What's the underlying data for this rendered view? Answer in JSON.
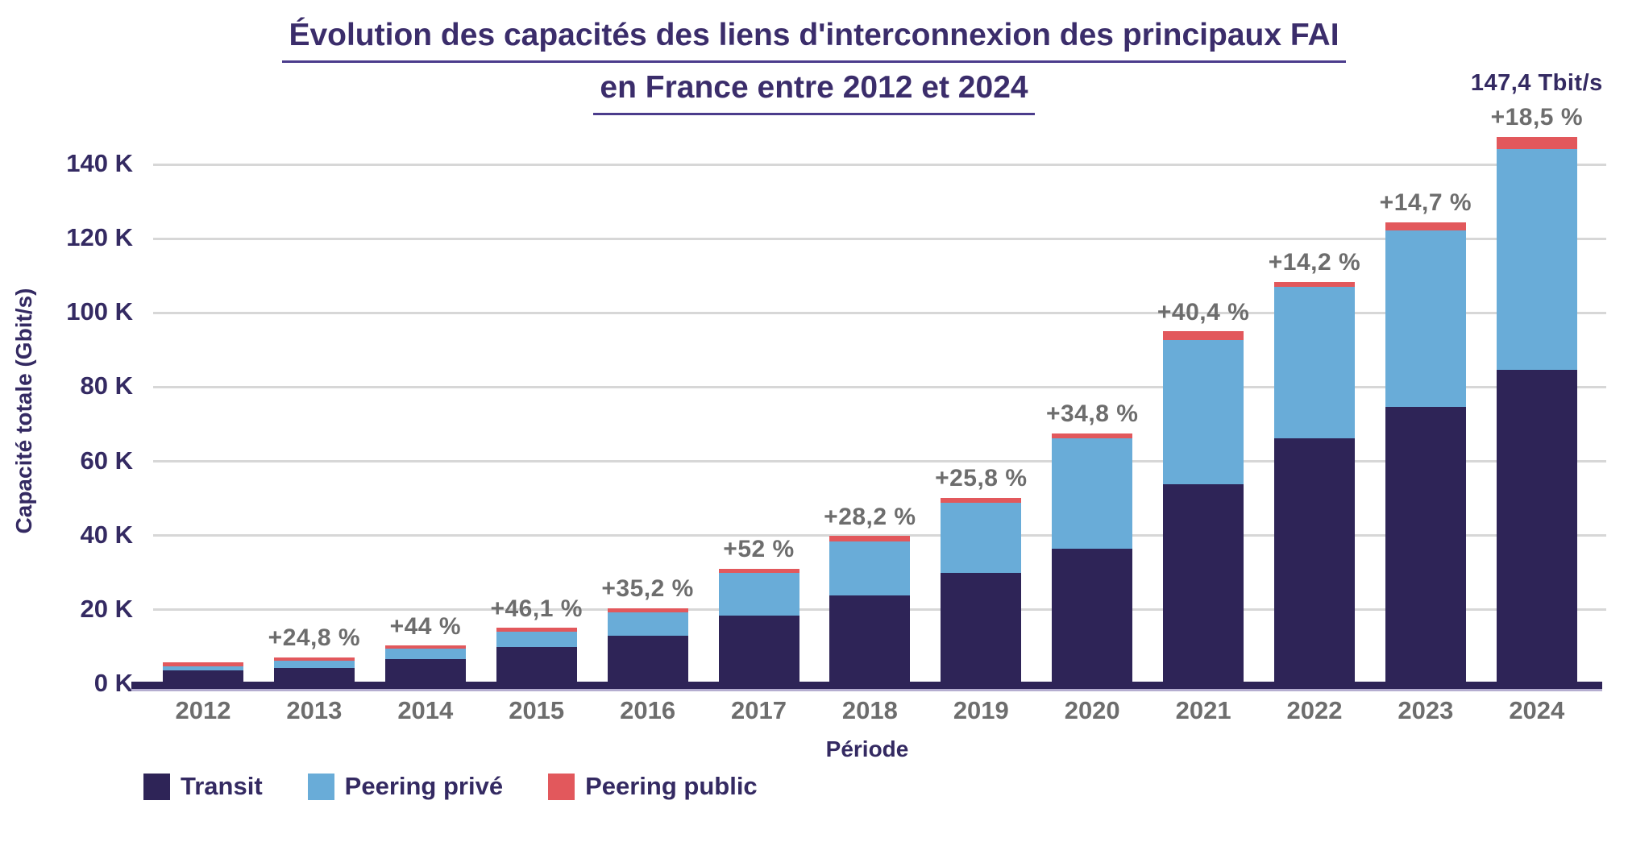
{
  "title": {
    "line1": "Évolution des capacités des liens d'interconnexion des principaux FAI",
    "line2": "en France entre 2012 et 2024"
  },
  "chart_data": {
    "type": "bar",
    "stacked": true,
    "categories": [
      "2012",
      "2013",
      "2014",
      "2015",
      "2016",
      "2017",
      "2018",
      "2019",
      "2020",
      "2021",
      "2022",
      "2023",
      "2024"
    ],
    "series": [
      {
        "name": "Transit",
        "color": "#2e2457",
        "values": [
          3.6,
          4.4,
          6.7,
          10.0,
          13.1,
          18.5,
          23.9,
          30.0,
          36.5,
          53.9,
          66.2,
          74.6,
          84.6
        ]
      },
      {
        "name": "Peering privé",
        "color": "#69acd8",
        "values": [
          1.2,
          1.9,
          2.8,
          4.1,
          6.3,
          11.5,
          14.5,
          18.9,
          29.8,
          38.8,
          40.7,
          47.7,
          59.5
        ]
      },
      {
        "name": "Peering public",
        "color": "#e2585c",
        "values": [
          1.0,
          0.9,
          0.9,
          1.0,
          1.1,
          1.1,
          1.5,
          1.3,
          1.3,
          2.3,
          1.5,
          2.1,
          3.3
        ]
      }
    ],
    "totals_tbits": [
      5.8,
      7.2,
      10.4,
      15.1,
      20.5,
      31.1,
      39.9,
      50.2,
      67.6,
      95.0,
      108.4,
      124.4,
      147.4
    ],
    "growth_labels": [
      null,
      "+24,8 %",
      "+44 %",
      "+46,1 %",
      "+35,2 %",
      "+52 %",
      "+28,2 %",
      "+25,8 %",
      "+34,8 %",
      "+40,4 %",
      "+14,2 %",
      "+14,7 %",
      "+18,5 %"
    ],
    "peak_label": "147,4 Tbit/s",
    "xlabel": "Période",
    "ylabel": "Capacité totale (Gbit/s)",
    "y_ticks": [
      "0 K",
      "20 K",
      "40 K",
      "60 K",
      "80 K",
      "100 K",
      "120 K",
      "140 K"
    ],
    "y_tick_step_k": 20,
    "ylim": [
      0,
      153
    ],
    "grid": "horizontal",
    "legend_position": "bottom-left"
  },
  "colors": {
    "title_text": "#3b2d6b",
    "underline": "#4b3c8c",
    "axis_text": "#342a62",
    "muted_text": "#6d6d6d",
    "gridline": "#d7d7d7",
    "axis_line": "#2e2457",
    "background": "#ffffff"
  }
}
